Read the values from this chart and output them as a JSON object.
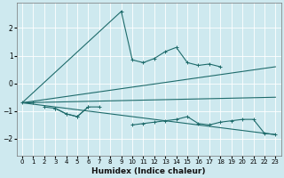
{
  "xlabel": "Humidex (Indice chaleur)",
  "background_color": "#cee9ef",
  "grid_color": "#ffffff",
  "line_color": "#1e6b6b",
  "xlim": [
    -0.5,
    23.5
  ],
  "ylim": [
    -2.6,
    2.9
  ],
  "xticks": [
    0,
    1,
    2,
    3,
    4,
    5,
    6,
    7,
    8,
    9,
    10,
    11,
    12,
    13,
    14,
    15,
    16,
    17,
    18,
    19,
    20,
    21,
    22,
    23
  ],
  "yticks": [
    -2,
    -1,
    0,
    1,
    2
  ],
  "fan_line1": {
    "x": [
      0,
      23
    ],
    "y": [
      -0.7,
      0.6
    ]
  },
  "fan_line2": {
    "x": [
      0,
      23
    ],
    "y": [
      -0.7,
      -0.5
    ]
  },
  "fan_line3": {
    "x": [
      0,
      23
    ],
    "y": [
      -0.7,
      -1.85
    ]
  },
  "spike": {
    "x": [
      0,
      9
    ],
    "y": [
      -0.7,
      2.6
    ]
  },
  "curve_x": [
    2,
    3,
    4,
    5,
    6,
    7,
    9,
    10,
    11,
    12,
    13,
    14,
    15,
    16,
    17,
    18
  ],
  "curve_y": [
    -0.85,
    -0.9,
    -1.1,
    -1.2,
    -0.85,
    -0.85,
    2.6,
    0.85,
    0.75,
    0.9,
    1.15,
    1.3,
    0.75,
    0.65,
    0.7,
    0.6
  ],
  "lower_curve_x": [
    0,
    1,
    3,
    4,
    5,
    6,
    10,
    11,
    12,
    13,
    14,
    15,
    16,
    17,
    18,
    19,
    20,
    21,
    22,
    23
  ],
  "lower_curve_y": [
    -0.7,
    -0.7,
    -0.9,
    -1.1,
    -1.2,
    -0.85,
    -1.5,
    -1.45,
    -1.4,
    -1.35,
    -1.3,
    -1.2,
    -1.45,
    -1.5,
    -1.4,
    -1.35,
    -1.3,
    -1.3,
    -1.8,
    -1.85
  ]
}
